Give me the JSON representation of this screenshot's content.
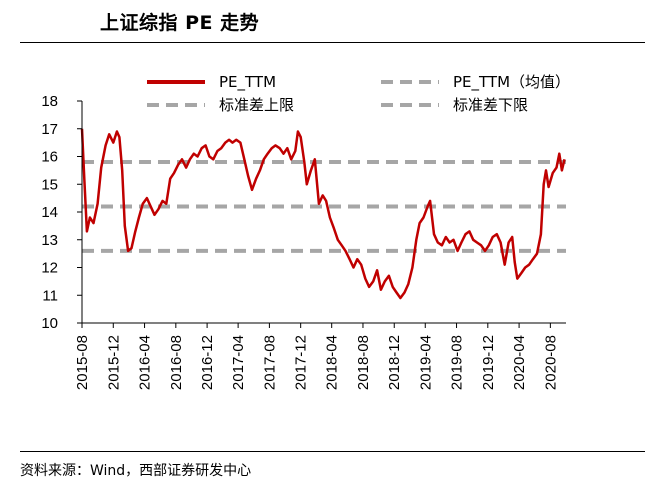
{
  "title": "上证综指 PE 走势",
  "source": "资料来源：Wind，西部证券研发中心",
  "chart_data": {
    "type": "line",
    "ylim": [
      10,
      18
    ],
    "yticks": [
      10,
      11,
      12,
      13,
      14,
      15,
      16,
      17,
      18
    ],
    "xlim": [
      "2015-08",
      "2020-10"
    ],
    "xticks": [
      "2015-08",
      "2015-12",
      "2016-04",
      "2016-08",
      "2016-12",
      "2017-04",
      "2017-08",
      "2017-12",
      "2018-04",
      "2018-08",
      "2018-12",
      "2019-04",
      "2019-08",
      "2019-12",
      "2020-04",
      "2020-08"
    ],
    "grid": false,
    "legend_position": "top",
    "series": [
      {
        "name": "PE_TTM",
        "color": "#c00000",
        "style": "solid",
        "points": [
          [
            "2015-08-01",
            17.0
          ],
          [
            "2015-08-10",
            15.2
          ],
          [
            "2015-08-20",
            13.3
          ],
          [
            "2015-09-01",
            13.8
          ],
          [
            "2015-09-15",
            13.6
          ],
          [
            "2015-10-01",
            14.3
          ],
          [
            "2015-10-15",
            15.6
          ],
          [
            "2015-11-01",
            16.4
          ],
          [
            "2015-11-15",
            16.8
          ],
          [
            "2015-12-01",
            16.5
          ],
          [
            "2015-12-15",
            16.9
          ],
          [
            "2015-12-25",
            16.7
          ],
          [
            "2016-01-05",
            15.5
          ],
          [
            "2016-01-15",
            13.5
          ],
          [
            "2016-01-28",
            12.6
          ],
          [
            "2016-02-10",
            12.7
          ],
          [
            "2016-02-25",
            13.3
          ],
          [
            "2016-03-10",
            13.8
          ],
          [
            "2016-03-25",
            14.3
          ],
          [
            "2016-04-10",
            14.5
          ],
          [
            "2016-04-25",
            14.2
          ],
          [
            "2016-05-10",
            13.9
          ],
          [
            "2016-05-25",
            14.1
          ],
          [
            "2016-06-10",
            14.4
          ],
          [
            "2016-06-25",
            14.3
          ],
          [
            "2016-07-10",
            15.2
          ],
          [
            "2016-07-25",
            15.4
          ],
          [
            "2016-08-10",
            15.7
          ],
          [
            "2016-08-25",
            15.9
          ],
          [
            "2016-09-10",
            15.6
          ],
          [
            "2016-09-25",
            15.9
          ],
          [
            "2016-10-10",
            16.1
          ],
          [
            "2016-10-25",
            16.0
          ],
          [
            "2016-11-10",
            16.3
          ],
          [
            "2016-11-25",
            16.4
          ],
          [
            "2016-12-10",
            16.0
          ],
          [
            "2016-12-25",
            15.9
          ],
          [
            "2017-01-10",
            16.2
          ],
          [
            "2017-01-25",
            16.3
          ],
          [
            "2017-02-10",
            16.5
          ],
          [
            "2017-02-25",
            16.6
          ],
          [
            "2017-03-10",
            16.5
          ],
          [
            "2017-03-25",
            16.6
          ],
          [
            "2017-04-10",
            16.5
          ],
          [
            "2017-04-25",
            15.9
          ],
          [
            "2017-05-10",
            15.3
          ],
          [
            "2017-05-25",
            14.8
          ],
          [
            "2017-06-10",
            15.2
          ],
          [
            "2017-06-25",
            15.5
          ],
          [
            "2017-07-10",
            15.9
          ],
          [
            "2017-07-25",
            16.1
          ],
          [
            "2017-08-10",
            16.3
          ],
          [
            "2017-08-25",
            16.4
          ],
          [
            "2017-09-10",
            16.3
          ],
          [
            "2017-09-25",
            16.1
          ],
          [
            "2017-10-10",
            16.3
          ],
          [
            "2017-10-25",
            15.9
          ],
          [
            "2017-11-10",
            16.2
          ],
          [
            "2017-11-20",
            16.9
          ],
          [
            "2017-12-01",
            16.7
          ],
          [
            "2017-12-15",
            15.8
          ],
          [
            "2017-12-25",
            15.0
          ],
          [
            "2018-01-10",
            15.5
          ],
          [
            "2018-01-25",
            15.9
          ],
          [
            "2018-02-10",
            14.3
          ],
          [
            "2018-02-25",
            14.6
          ],
          [
            "2018-03-10",
            14.4
          ],
          [
            "2018-03-25",
            13.8
          ],
          [
            "2018-04-10",
            13.4
          ],
          [
            "2018-04-25",
            13.0
          ],
          [
            "2018-05-10",
            12.8
          ],
          [
            "2018-05-25",
            12.6
          ],
          [
            "2018-06-10",
            12.3
          ],
          [
            "2018-06-25",
            12.0
          ],
          [
            "2018-07-10",
            12.3
          ],
          [
            "2018-07-25",
            12.1
          ],
          [
            "2018-08-10",
            11.6
          ],
          [
            "2018-08-25",
            11.3
          ],
          [
            "2018-09-10",
            11.5
          ],
          [
            "2018-09-25",
            11.9
          ],
          [
            "2018-10-10",
            11.2
          ],
          [
            "2018-10-25",
            11.5
          ],
          [
            "2018-11-10",
            11.7
          ],
          [
            "2018-11-25",
            11.3
          ],
          [
            "2018-12-10",
            11.1
          ],
          [
            "2018-12-25",
            10.9
          ],
          [
            "2019-01-10",
            11.1
          ],
          [
            "2019-01-25",
            11.4
          ],
          [
            "2019-02-10",
            12.0
          ],
          [
            "2019-02-25",
            13.0
          ],
          [
            "2019-03-10",
            13.6
          ],
          [
            "2019-03-25",
            13.8
          ],
          [
            "2019-04-10",
            14.2
          ],
          [
            "2019-04-20",
            14.4
          ],
          [
            "2019-05-05",
            13.2
          ],
          [
            "2019-05-20",
            12.9
          ],
          [
            "2019-06-05",
            12.8
          ],
          [
            "2019-06-20",
            13.1
          ],
          [
            "2019-07-05",
            12.9
          ],
          [
            "2019-07-20",
            13.0
          ],
          [
            "2019-08-05",
            12.6
          ],
          [
            "2019-08-20",
            12.9
          ],
          [
            "2019-09-05",
            13.2
          ],
          [
            "2019-09-20",
            13.3
          ],
          [
            "2019-10-05",
            13.0
          ],
          [
            "2019-10-20",
            12.9
          ],
          [
            "2019-11-05",
            12.8
          ],
          [
            "2019-11-20",
            12.6
          ],
          [
            "2019-12-05",
            12.8
          ],
          [
            "2019-12-20",
            13.1
          ],
          [
            "2020-01-05",
            13.2
          ],
          [
            "2020-01-20",
            12.9
          ],
          [
            "2020-02-05",
            12.1
          ],
          [
            "2020-02-20",
            12.9
          ],
          [
            "2020-03-05",
            13.1
          ],
          [
            "2020-03-15",
            12.2
          ],
          [
            "2020-03-25",
            11.6
          ],
          [
            "2020-04-10",
            11.8
          ],
          [
            "2020-04-25",
            12.0
          ],
          [
            "2020-05-10",
            12.1
          ],
          [
            "2020-05-25",
            12.3
          ],
          [
            "2020-06-10",
            12.5
          ],
          [
            "2020-06-25",
            13.2
          ],
          [
            "2020-07-06",
            15.0
          ],
          [
            "2020-07-15",
            15.5
          ],
          [
            "2020-07-25",
            14.9
          ],
          [
            "2020-08-10",
            15.4
          ],
          [
            "2020-08-25",
            15.6
          ],
          [
            "2020-09-05",
            16.1
          ],
          [
            "2020-09-15",
            15.5
          ],
          [
            "2020-09-25",
            15.9
          ]
        ]
      },
      {
        "name": "PE_TTM（均值）",
        "color": "#a6a6a6",
        "style": "dashed",
        "value": 14.2
      },
      {
        "name": "标准差上限",
        "color": "#a6a6a6",
        "style": "dashed",
        "value": 15.8
      },
      {
        "name": "标准差下限",
        "color": "#a6a6a6",
        "style": "dashed",
        "value": 12.6
      }
    ]
  }
}
